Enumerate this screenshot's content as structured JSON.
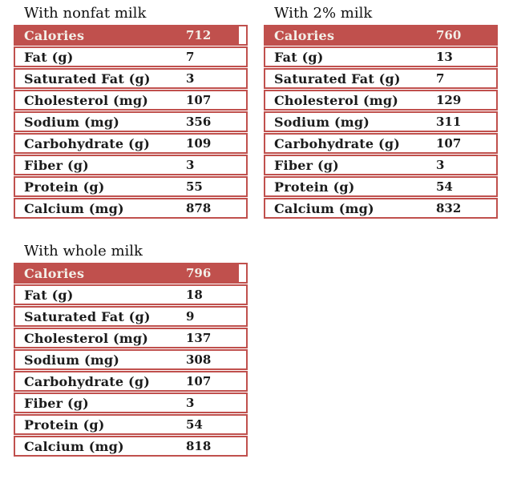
{
  "page": {
    "background": "#ffffff",
    "accent_red": "#C0504D",
    "header_text_color": "#F3EFE8"
  },
  "tables": [
    {
      "title": "With nonfat milk",
      "rows": [
        {
          "label": "Calories",
          "value": "712"
        },
        {
          "label": "Fat (g)",
          "value": "7"
        },
        {
          "label": "Saturated Fat (g)",
          "value": "3"
        },
        {
          "label": "Cholesterol (mg)",
          "value": "107"
        },
        {
          "label": "Sodium (mg)",
          "value": "356"
        },
        {
          "label": "Carbohydrate (g)",
          "value": "109"
        },
        {
          "label": "Fiber (g)",
          "value": "3"
        },
        {
          "label": "Protein (g)",
          "value": "55"
        },
        {
          "label": "Calcium (mg)",
          "value": "878"
        }
      ]
    },
    {
      "title": "With 2% milk",
      "rows": [
        {
          "label": "Calories",
          "value": "760"
        },
        {
          "label": "Fat (g)",
          "value": "13"
        },
        {
          "label": "Saturated Fat (g)",
          "value": "7"
        },
        {
          "label": "Cholesterol (mg)",
          "value": "129"
        },
        {
          "label": "Sodium (mg)",
          "value": "311"
        },
        {
          "label": "Carbohydrate (g)",
          "value": "107"
        },
        {
          "label": "Fiber (g)",
          "value": "3"
        },
        {
          "label": "Protein (g)",
          "value": "54"
        },
        {
          "label": "Calcium (mg)",
          "value": "832"
        }
      ]
    },
    {
      "title": "With whole milk",
      "rows": [
        {
          "label": "Calories",
          "value": "796"
        },
        {
          "label": "Fat (g)",
          "value": "18"
        },
        {
          "label": "Saturated Fat (g)",
          "value": "9"
        },
        {
          "label": "Cholesterol (mg)",
          "value": "137"
        },
        {
          "label": "Sodium (mg)",
          "value": "308"
        },
        {
          "label": "Carbohydrate (g)",
          "value": "107"
        },
        {
          "label": "Fiber (g)",
          "value": "3"
        },
        {
          "label": "Protein (g)",
          "value": "54"
        },
        {
          "label": "Calcium (mg)",
          "value": "818"
        }
      ]
    }
  ]
}
